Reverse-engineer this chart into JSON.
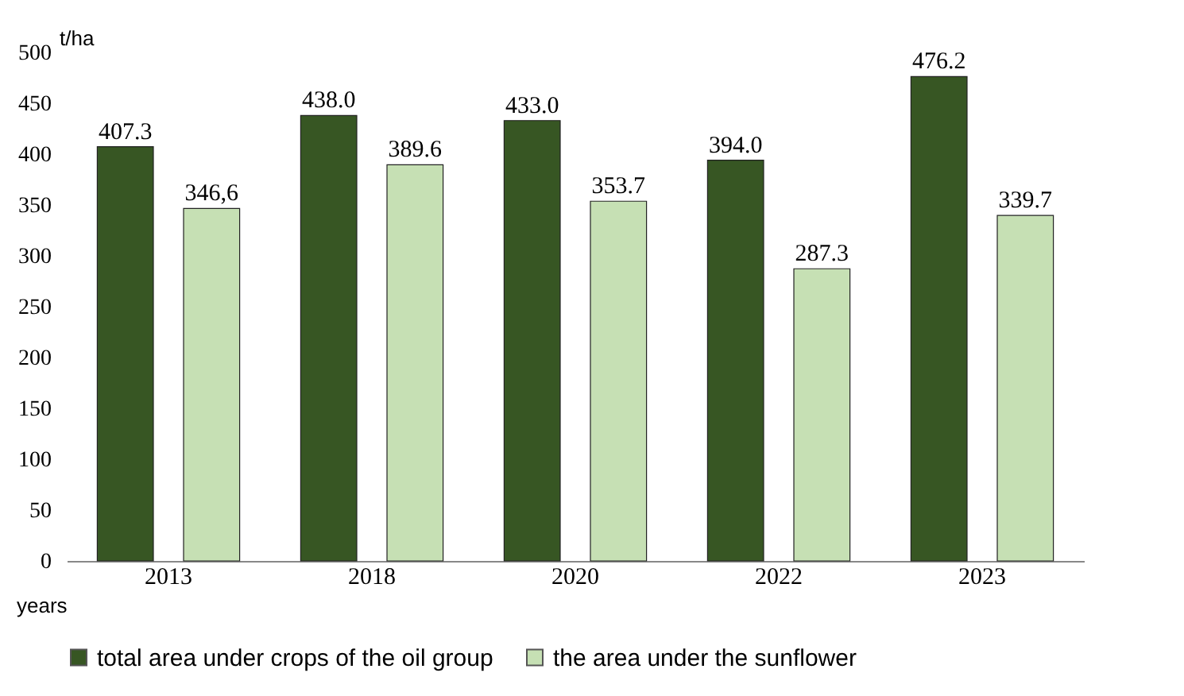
{
  "chart_data": {
    "type": "bar",
    "xlabel": "years",
    "ylabel": "t/ha",
    "categories": [
      "2013",
      "2018",
      "2020",
      "2022",
      "2023"
    ],
    "series": [
      {
        "name": "total area under crops of the oil group",
        "color": "#375623",
        "values": [
          407.3,
          438.0,
          433.0,
          394.0,
          476.2
        ],
        "value_labels": [
          "407.3",
          "438.0",
          "433.0",
          "394.0",
          "476.2"
        ]
      },
      {
        "name": "the area under the sunflower",
        "color": "#c6e0b4",
        "values": [
          346.6,
          389.6,
          353.7,
          287.3,
          339.7
        ],
        "value_labels": [
          "346,6",
          "389.6",
          "353.7",
          "287.3",
          "339.7"
        ]
      }
    ],
    "ylim": [
      0,
      500
    ],
    "yticks": [
      0,
      50,
      100,
      150,
      200,
      250,
      300,
      350,
      400,
      450,
      500
    ],
    "grid": false,
    "legend": "bottom"
  }
}
